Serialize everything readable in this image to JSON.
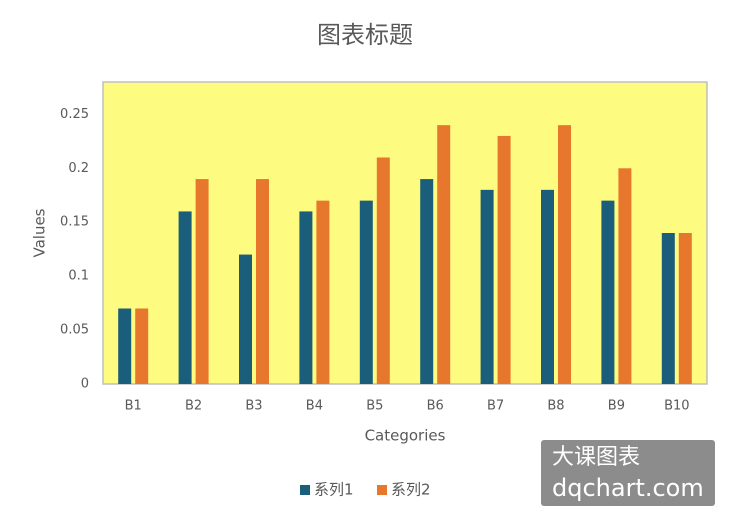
{
  "chart_data": {
    "type": "bar",
    "title": "图表标题",
    "x_label": "Categories",
    "y_label": "Values",
    "categories": [
      "B1",
      "B2",
      "B3",
      "B4",
      "B5",
      "B6",
      "B7",
      "B8",
      "B9",
      "B10"
    ],
    "series": [
      {
        "name": "系列1",
        "color": "#1b5e7b",
        "values": [
          0.07,
          0.16,
          0.12,
          0.16,
          0.17,
          0.19,
          0.18,
          0.18,
          0.17,
          0.14
        ]
      },
      {
        "name": "系列2",
        "color": "#e8772e",
        "values": [
          0.07,
          0.19,
          0.19,
          0.17,
          0.21,
          0.24,
          0.23,
          0.24,
          0.2,
          0.14
        ]
      }
    ],
    "ylim": [
      0,
      0.28
    ],
    "yticks": [
      0,
      0.05,
      0.1,
      0.15,
      0.2,
      0.25
    ],
    "grid": false,
    "plot_background": "#fdfb80",
    "legend": "bottom"
  },
  "watermark": {
    "line1": "大课图表",
    "line2": "dqchart.com"
  }
}
